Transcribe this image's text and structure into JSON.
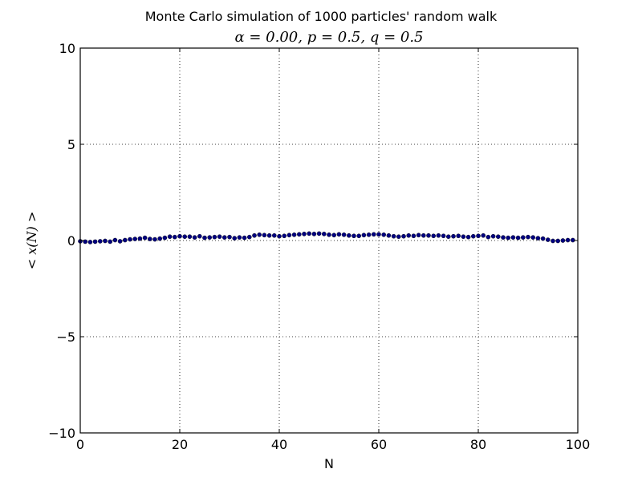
{
  "chart_data": {
    "type": "scatter",
    "title": "Monte Carlo simulation of 1000 particles' random walk",
    "subtitle": "α = 0.00, p = 0.5, q = 0.5",
    "xlabel": "N",
    "ylabel": "< x(N) >",
    "xlim": [
      0,
      100
    ],
    "ylim": [
      -10,
      10
    ],
    "x_ticks": [
      "0",
      "20",
      "40",
      "60",
      "80",
      "100"
    ],
    "y_ticks": [
      "10",
      "5",
      "0",
      "−5",
      "−10"
    ],
    "grid": true,
    "legend": "none",
    "marker_color": "#000080",
    "series": [
      {
        "x": [
          0,
          1,
          2,
          3,
          4,
          5,
          6,
          7,
          8,
          9,
          10,
          11,
          12,
          13,
          14,
          15,
          16,
          17,
          18,
          19,
          20,
          21,
          22,
          23,
          24,
          25,
          26,
          27,
          28,
          29,
          30,
          31,
          32,
          33,
          34,
          35,
          36,
          37,
          38,
          39,
          40,
          41,
          42,
          43,
          44,
          45,
          46,
          47,
          48,
          49,
          50,
          51,
          52,
          53,
          54,
          55,
          56,
          57,
          58,
          59,
          60,
          61,
          62,
          63,
          64,
          65,
          66,
          67,
          68,
          69,
          70,
          71,
          72,
          73,
          74,
          75,
          76,
          77,
          78,
          79,
          80,
          81,
          82,
          83,
          84,
          85,
          86,
          87,
          88,
          89,
          90,
          91,
          92,
          93,
          94,
          95,
          96,
          97,
          98,
          99
        ],
        "y": [
          -0.04,
          -0.06,
          -0.08,
          -0.06,
          -0.04,
          -0.02,
          -0.06,
          0.02,
          -0.04,
          0.02,
          0.06,
          0.08,
          0.1,
          0.14,
          0.08,
          0.06,
          0.1,
          0.14,
          0.2,
          0.18,
          0.22,
          0.2,
          0.2,
          0.16,
          0.22,
          0.14,
          0.16,
          0.18,
          0.2,
          0.16,
          0.18,
          0.12,
          0.16,
          0.14,
          0.18,
          0.26,
          0.3,
          0.28,
          0.26,
          0.26,
          0.22,
          0.24,
          0.28,
          0.3,
          0.32,
          0.34,
          0.36,
          0.34,
          0.36,
          0.34,
          0.3,
          0.28,
          0.32,
          0.3,
          0.26,
          0.24,
          0.24,
          0.28,
          0.3,
          0.32,
          0.32,
          0.3,
          0.26,
          0.22,
          0.2,
          0.22,
          0.26,
          0.24,
          0.28,
          0.26,
          0.26,
          0.24,
          0.26,
          0.24,
          0.2,
          0.22,
          0.24,
          0.2,
          0.18,
          0.22,
          0.24,
          0.26,
          0.18,
          0.22,
          0.2,
          0.16,
          0.14,
          0.16,
          0.14,
          0.16,
          0.18,
          0.16,
          0.12,
          0.1,
          0.04,
          -0.02,
          -0.02,
          0.0,
          0.02,
          0.02
        ]
      }
    ]
  }
}
